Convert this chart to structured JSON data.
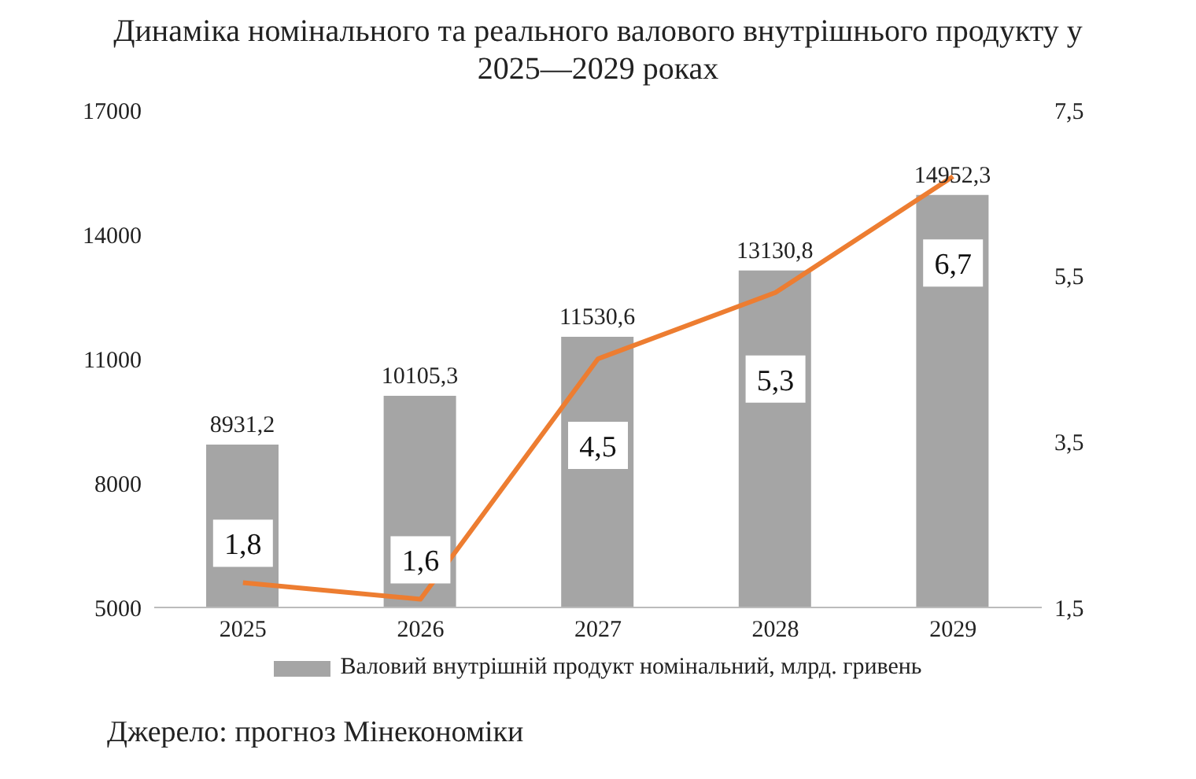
{
  "chart_data": {
    "type": "bar",
    "title": "Динаміка номінального та реального валового внутрішнього продукту у 2025—2029 роках",
    "categories": [
      "2025",
      "2026",
      "2027",
      "2028",
      "2029"
    ],
    "series": [
      {
        "name": "Валовий внутрішній продукт номінальний, млрд. гривень",
        "color": "#a5a5a5",
        "values": [
          8931.2,
          10105.3,
          11530.6,
          13130.8,
          14952.3
        ],
        "value_labels": [
          "8931,2",
          "10105,3",
          "11530,6",
          "13130,8",
          "14952,3"
        ]
      },
      {
        "type": "line",
        "axis": "y2",
        "color": "#ed7d31",
        "values": [
          1.8,
          1.6,
          4.5,
          5.3,
          6.7
        ],
        "value_labels": [
          "1,8",
          "1,6",
          "4,5",
          "5,3",
          "6,7"
        ]
      }
    ],
    "ylim": [
      5000,
      17000
    ],
    "yticks": [
      5000,
      8000,
      11000,
      14000,
      17000
    ],
    "y2lim": [
      1.5,
      7.5
    ],
    "y2ticks": [
      {
        "value": 1.5,
        "label": "1,5"
      },
      {
        "value": 3.5,
        "label": "3,5"
      },
      {
        "value": 5.5,
        "label": "5,5"
      },
      {
        "value": 7.5,
        "label": "7,5"
      }
    ],
    "grid": false,
    "legend": "bottom",
    "marker": "none",
    "annotations": [
      "Джерело: прогноз Мінекономіки"
    ]
  }
}
